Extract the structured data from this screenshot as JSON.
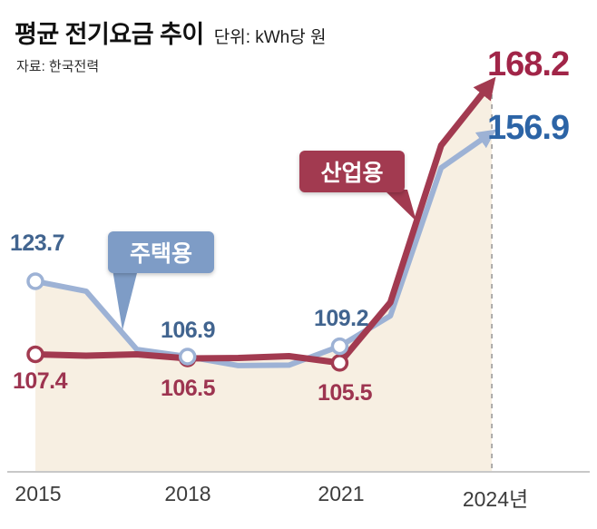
{
  "header": {
    "title": "평균 전기요금 추이",
    "unit": "단위: kWh당 원",
    "source": "자료: 한국전력"
  },
  "callouts": {
    "residential": "주택용",
    "industrial": "산업용"
  },
  "value_labels": {
    "res_2015": "123.7",
    "ind_2015": "107.4",
    "res_2018": "106.9",
    "ind_2018": "106.5",
    "res_2021": "109.2",
    "ind_2021": "105.5",
    "ind_2024": "168.2",
    "res_2024": "156.9"
  },
  "x_axis": {
    "labels": [
      "2015",
      "2018",
      "2021",
      "2024년"
    ]
  },
  "colors": {
    "residential_line": "#9db2d5",
    "industrial_line": "#a23a50",
    "residential_text": "#41648f",
    "residential_text_big": "#2c64a6",
    "industrial_text": "#9d3450",
    "industrial_text_big": "#a12548",
    "area_fill": "#f7efe2",
    "residential_callout_bg": "#7e9cc6",
    "industrial_callout_bg": "#a23a50",
    "axis_line": "#c8c8c8",
    "dashed_line": "#9a9a9a"
  },
  "chart_data": {
    "type": "line",
    "title": "평균 전기요금 추이",
    "unit_label": "단위: kWh당 원",
    "source": "자료: 한국전력",
    "x": [
      2015,
      2016,
      2017,
      2018,
      2019,
      2020,
      2021,
      2022,
      2023,
      2024
    ],
    "x_tick_labels": [
      "2015",
      "2018",
      "2021",
      "2024년"
    ],
    "series": [
      {
        "name": "주택용",
        "color": "#9db2d5",
        "values": [
          123.7,
          121.5,
          108.5,
          106.9,
          104.9,
          105.0,
          109.2,
          116.0,
          149.0,
          156.9
        ]
      },
      {
        "name": "산업용",
        "color": "#a23a50",
        "values": [
          107.4,
          107.1,
          107.4,
          106.5,
          106.6,
          107.0,
          105.5,
          119.0,
          154.0,
          168.2
        ]
      }
    ],
    "labeled_points": {
      "주택용": {
        "2015": 123.7,
        "2018": 106.9,
        "2021": 109.2,
        "2024": 156.9
      },
      "산업용": {
        "2015": 107.4,
        "2018": 106.5,
        "2021": 105.5,
        "2024": 168.2
      }
    },
    "ylim": [
      100,
      175
    ],
    "grid": false,
    "legend_position": "inline-callouts",
    "notes": "dashed vertical guide at 2024; both series end in arrowheads"
  }
}
